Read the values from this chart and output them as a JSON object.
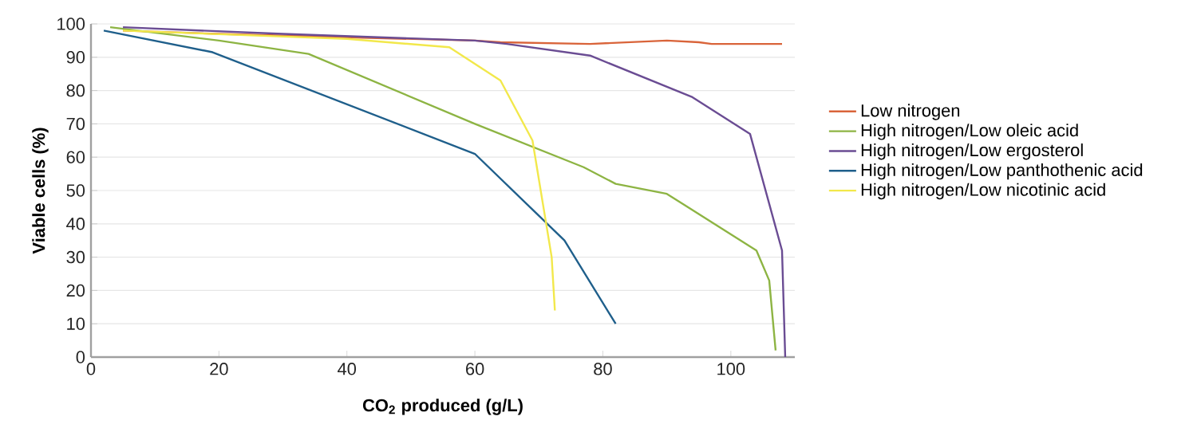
{
  "chart_data": {
    "type": "line",
    "xlabel": "CO$_{2}$ produced (g/L)",
    "ylabel": "Viable cells (%)",
    "xlim": [
      0,
      110
    ],
    "ylim": [
      0,
      100
    ],
    "xticks": [
      0,
      20,
      40,
      60,
      80,
      100
    ],
    "yticks": [
      0,
      10,
      20,
      30,
      40,
      50,
      60,
      70,
      80,
      90,
      100
    ],
    "grid": "y",
    "legend": "right",
    "marker": "none",
    "line_style": "solid",
    "series": [
      {
        "name": "Low nitrogen",
        "color": "#d9643a",
        "x": [
          5,
          20,
          40,
          60,
          64,
          78,
          90,
          95,
          97,
          108
        ],
        "values": [
          98,
          97,
          96,
          95,
          94.5,
          94,
          95,
          94.5,
          94,
          94
        ]
      },
      {
        "name": "High nitrogen/Low oleic acid",
        "color": "#8db443",
        "x": [
          3,
          20,
          34,
          60,
          77,
          82,
          90,
          104,
          106,
          107
        ],
        "values": [
          99,
          95,
          91,
          70,
          57,
          52,
          49,
          32,
          23,
          2
        ]
      },
      {
        "name": "High nitrogen/Low ergosterol",
        "color": "#6a4c93",
        "x": [
          5,
          30,
          60,
          65,
          78,
          94,
          103,
          108,
          108.5
        ],
        "values": [
          99,
          97,
          95,
          94,
          90.5,
          78,
          67,
          32,
          0
        ]
      },
      {
        "name": "High nitrogen/Low panthothenic acid",
        "color": "#1f5f8b",
        "x": [
          2,
          19,
          60,
          74,
          82
        ],
        "values": [
          98,
          91.5,
          61,
          35,
          10
        ]
      },
      {
        "name": "High nitrogen/Low nicotinic acid",
        "color": "#f2e84b",
        "x": [
          5,
          40,
          56,
          64,
          69,
          72,
          72.5
        ],
        "values": [
          98,
          95.5,
          93,
          83,
          65,
          30,
          14
        ]
      }
    ]
  }
}
